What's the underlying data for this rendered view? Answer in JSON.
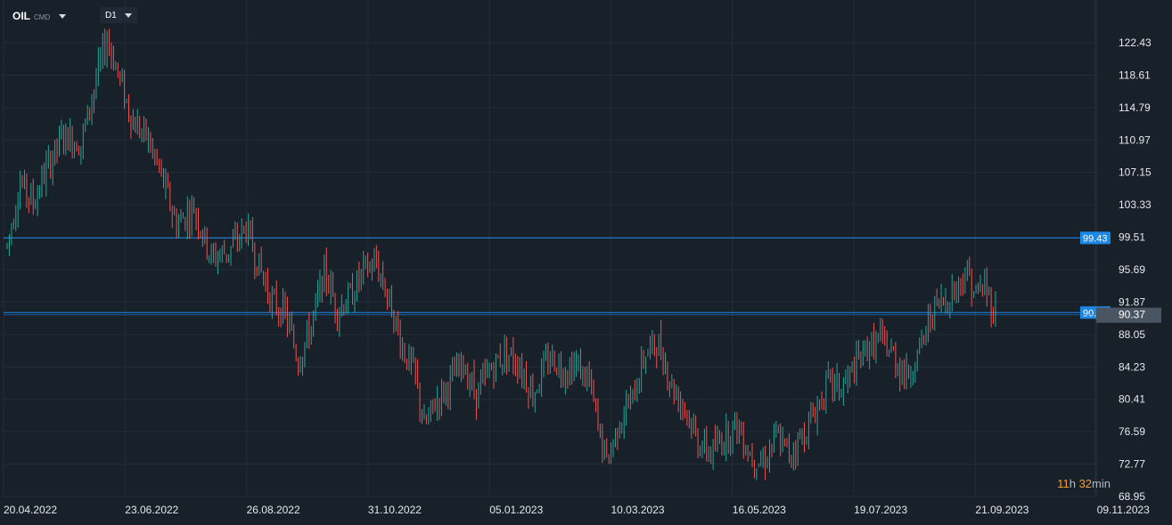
{
  "header": {
    "symbol": "OIL",
    "exchange": "CMD",
    "timeframe": "D1"
  },
  "timer": {
    "hours": "11",
    "hours_unit": "h",
    "minutes": "32",
    "minutes_unit": "min"
  },
  "colors": {
    "background": "#18202a",
    "grid": "#232d38",
    "up": "#26a69a",
    "down": "#ef5350",
    "hline": "#1e88e5",
    "price_tag": "#4a5563",
    "axis_text": "#e6e9ee"
  },
  "chart_data": {
    "type": "ohlc",
    "title": "",
    "y_ticks": [
      "122.43",
      "118.61",
      "114.79",
      "110.97",
      "107.15",
      "103.33",
      "99.51",
      "95.69",
      "91.87",
      "88.05",
      "84.23",
      "80.41",
      "76.59",
      "72.77",
      "68.95"
    ],
    "x_ticks": [
      "20.04.2022",
      "23.06.2022",
      "26.08.2022",
      "31.10.2022",
      "05.01.2023",
      "10.03.2023",
      "16.05.2023",
      "19.07.2023",
      "21.09.2023",
      "09.11.2023"
    ],
    "ylim": [
      68.95,
      126.25
    ],
    "grid": true,
    "horizontal_lines": [
      {
        "label": "99.43",
        "value": 99.43
      },
      {
        "label": "90.63",
        "value": 90.63
      }
    ],
    "current_price": {
      "label": "90.37",
      "value": 90.37
    },
    "close_path": [
      [
        0,
        98.5
      ],
      [
        6,
        106.0
      ],
      [
        12,
        103.5
      ],
      [
        18,
        107.5
      ],
      [
        26,
        111.5
      ],
      [
        34,
        110.5
      ],
      [
        40,
        117.0
      ],
      [
        46,
        123.0
      ],
      [
        52,
        118.0
      ],
      [
        58,
        113.0
      ],
      [
        64,
        111.5
      ],
      [
        70,
        107.5
      ],
      [
        78,
        101.0
      ],
      [
        86,
        103.0
      ],
      [
        94,
        97.0
      ],
      [
        102,
        98.0
      ],
      [
        110,
        100.5
      ],
      [
        116,
        96.0
      ],
      [
        122,
        92.0
      ],
      [
        128,
        90.5
      ],
      [
        134,
        85.0
      ],
      [
        140,
        89.0
      ],
      [
        146,
        95.5
      ],
      [
        152,
        91.0
      ],
      [
        158,
        92.5
      ],
      [
        164,
        95.5
      ],
      [
        170,
        96.5
      ],
      [
        176,
        92.0
      ],
      [
        182,
        86.5
      ],
      [
        188,
        83.0
      ],
      [
        192,
        77.0
      ],
      [
        198,
        80.5
      ],
      [
        204,
        82.5
      ],
      [
        210,
        84.5
      ],
      [
        216,
        81.0
      ],
      [
        224,
        84.5
      ],
      [
        230,
        86.0
      ],
      [
        236,
        84.5
      ],
      [
        242,
        81.0
      ],
      [
        250,
        85.5
      ],
      [
        256,
        84.0
      ],
      [
        262,
        84.5
      ],
      [
        268,
        82.5
      ],
      [
        272,
        77.0
      ],
      [
        276,
        73.0
      ],
      [
        282,
        78.0
      ],
      [
        288,
        80.5
      ],
      [
        294,
        86.0
      ],
      [
        300,
        87.0
      ],
      [
        306,
        82.0
      ],
      [
        312,
        79.5
      ],
      [
        318,
        75.5
      ],
      [
        324,
        74.0
      ],
      [
        330,
        76.0
      ],
      [
        336,
        77.5
      ],
      [
        342,
        74.0
      ],
      [
        348,
        73.0
      ],
      [
        354,
        76.0
      ],
      [
        360,
        74.0
      ],
      [
        366,
        76.0
      ],
      [
        372,
        79.0
      ],
      [
        378,
        82.5
      ],
      [
        384,
        81.5
      ],
      [
        390,
        84.0
      ],
      [
        396,
        86.5
      ],
      [
        402,
        87.5
      ],
      [
        408,
        85.5
      ],
      [
        414,
        83.0
      ],
      [
        420,
        86.0
      ],
      [
        426,
        91.0
      ],
      [
        432,
        92.0
      ],
      [
        438,
        94.0
      ],
      [
        442,
        95.5
      ],
      [
        446,
        92.5
      ],
      [
        450,
        94.0
      ],
      [
        454,
        91.0
      ]
    ]
  }
}
